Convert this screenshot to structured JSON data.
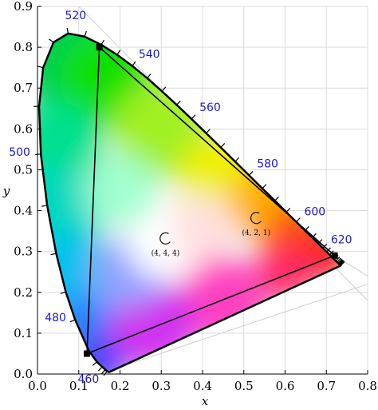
{
  "chart_data": {
    "type": "scatter",
    "xlabel": "x",
    "ylabel": "y",
    "xlim": [
      0.0,
      0.8
    ],
    "ylim": [
      0.0,
      0.9
    ],
    "x_ticks": [
      "0.0",
      "0.1",
      "0.2",
      "0.3",
      "0.4",
      "0.5",
      "0.6",
      "0.7",
      "0.8"
    ],
    "y_ticks": [
      "0.0",
      "0.1",
      "0.2",
      "0.3",
      "0.4",
      "0.5",
      "0.6",
      "0.7",
      "0.8",
      "0.9"
    ],
    "grid": true,
    "spectral_locus": [
      [
        0.1741,
        0.005
      ],
      [
        0.1738,
        0.0049
      ],
      [
        0.1733,
        0.0048
      ],
      [
        0.1726,
        0.0048
      ],
      [
        0.1714,
        0.0051
      ],
      [
        0.1689,
        0.0069
      ],
      [
        0.1644,
        0.0109
      ],
      [
        0.1566,
        0.0177
      ],
      [
        0.144,
        0.0297
      ],
      [
        0.1241,
        0.0578
      ],
      [
        0.0913,
        0.1327
      ],
      [
        0.0687,
        0.2007
      ],
      [
        0.0454,
        0.295
      ],
      [
        0.0235,
        0.4127
      ],
      [
        0.0082,
        0.5384
      ],
      [
        0.0039,
        0.6548
      ],
      [
        0.0139,
        0.7502
      ],
      [
        0.0389,
        0.812
      ],
      [
        0.0743,
        0.8338
      ],
      [
        0.1142,
        0.8262
      ],
      [
        0.1547,
        0.8059
      ],
      [
        0.1929,
        0.7816
      ],
      [
        0.2296,
        0.7543
      ],
      [
        0.2658,
        0.7243
      ],
      [
        0.3016,
        0.6923
      ],
      [
        0.3373,
        0.6589
      ],
      [
        0.3731,
        0.6245
      ],
      [
        0.4087,
        0.5896
      ],
      [
        0.4441,
        0.5547
      ],
      [
        0.4788,
        0.5202
      ],
      [
        0.5125,
        0.4866
      ],
      [
        0.5448,
        0.4544
      ],
      [
        0.5752,
        0.4242
      ],
      [
        0.6029,
        0.3965
      ],
      [
        0.627,
        0.3725
      ],
      [
        0.6482,
        0.3514
      ],
      [
        0.6658,
        0.334
      ],
      [
        0.6801,
        0.3197
      ],
      [
        0.6915,
        0.3083
      ],
      [
        0.7006,
        0.2993
      ],
      [
        0.7079,
        0.292
      ],
      [
        0.714,
        0.2859
      ],
      [
        0.719,
        0.2809
      ],
      [
        0.723,
        0.277
      ],
      [
        0.726,
        0.274
      ],
      [
        0.7283,
        0.2717
      ],
      [
        0.73,
        0.27
      ],
      [
        0.7311,
        0.2689
      ],
      [
        0.732,
        0.268
      ],
      [
        0.7327,
        0.2673
      ],
      [
        0.7334,
        0.2666
      ],
      [
        0.734,
        0.266
      ],
      [
        0.7344,
        0.2656
      ],
      [
        0.7346,
        0.2654
      ],
      [
        0.7347,
        0.2653
      ]
    ],
    "wavelength_labels": [
      {
        "label": "460",
        "x": 0.144,
        "y": 0.0297
      },
      {
        "label": "480",
        "x": 0.0913,
        "y": 0.1327
      },
      {
        "label": "500",
        "x": 0.0082,
        "y": 0.5384
      },
      {
        "label": "520",
        "x": 0.0743,
        "y": 0.8338
      },
      {
        "label": "540",
        "x": 0.2296,
        "y": 0.7543
      },
      {
        "label": "560",
        "x": 0.3731,
        "y": 0.6245
      },
      {
        "label": "580",
        "x": 0.5125,
        "y": 0.4866
      },
      {
        "label": "600",
        "x": 0.627,
        "y": 0.3725
      },
      {
        "label": "620",
        "x": 0.6915,
        "y": 0.3083
      }
    ],
    "gamut_triangle": [
      [
        0.15,
        0.8
      ],
      [
        0.72,
        0.29
      ],
      [
        0.12,
        0.05
      ]
    ],
    "annotations": [
      {
        "label": "(4, 4, 4)",
        "x": 0.31,
        "y": 0.33
      },
      {
        "label": "(4, 2, 1)",
        "x": 0.53,
        "y": 0.38
      }
    ]
  }
}
